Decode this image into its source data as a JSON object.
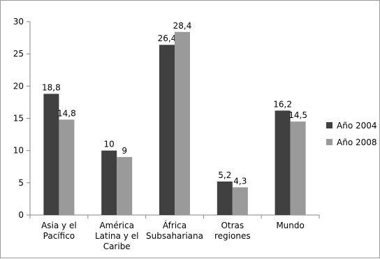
{
  "chart_data": {
    "type": "bar",
    "categories": [
      [
        "Asia y el",
        "Pacífico"
      ],
      [
        "América",
        "Latina y el",
        "Caribe"
      ],
      [
        "África",
        "Subsahariana"
      ],
      [
        "Otras",
        "regiones"
      ],
      [
        "Mundo"
      ]
    ],
    "series": [
      {
        "name": "Año 2004",
        "values": [
          18.8,
          10,
          26.4,
          5.2,
          16.2
        ],
        "labels": [
          "18,8",
          "10",
          "26,4",
          "5,2",
          "16,2"
        ],
        "color": "#404040"
      },
      {
        "name": "Año 2008",
        "values": [
          14.8,
          9,
          28.4,
          4.3,
          14.5
        ],
        "labels": [
          "14,8",
          "9",
          "28,4",
          "4,3",
          "14,5"
        ],
        "color": "#9a9a9a"
      }
    ],
    "ylim": [
      0,
      30
    ],
    "yticks": [
      0,
      5,
      10,
      15,
      20,
      25,
      30
    ],
    "grid": false,
    "legend_position": "right"
  }
}
